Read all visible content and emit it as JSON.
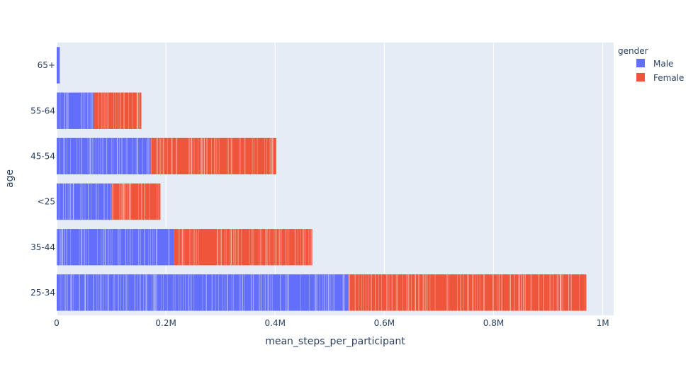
{
  "chart_data": {
    "type": "bar",
    "orientation": "horizontal",
    "barmode": "stack",
    "xlabel": "mean_steps_per_participant",
    "ylabel": "age",
    "xlim": [
      0,
      1020000
    ],
    "x_ticks": [
      {
        "value": 0,
        "label": "0"
      },
      {
        "value": 200000,
        "label": "0.2M"
      },
      {
        "value": 400000,
        "label": "0.4M"
      },
      {
        "value": 600000,
        "label": "0.6M"
      },
      {
        "value": 800000,
        "label": "0.8M"
      },
      {
        "value": 1000000,
        "label": "1M"
      }
    ],
    "categories": [
      "25-34",
      "35-44",
      "<25",
      "45-54",
      "55-64",
      "65+"
    ],
    "series": [
      {
        "name": "Male",
        "color": "#636efa",
        "values": [
          535000,
          215000,
          100000,
          172000,
          68000,
          6000
        ]
      },
      {
        "name": "Female",
        "color": "#ef553b",
        "values": [
          435000,
          253000,
          90000,
          230000,
          87000,
          0
        ]
      }
    ],
    "legend": {
      "title": "gender",
      "placement": "top-right"
    },
    "grid": true
  }
}
